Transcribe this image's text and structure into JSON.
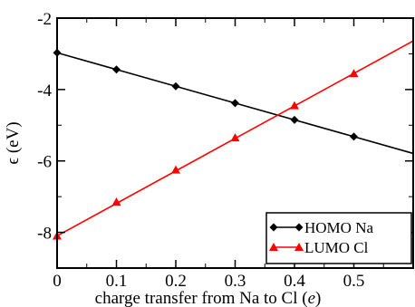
{
  "chart_data": {
    "type": "line",
    "title": "",
    "xlabel": "charge transfer from Na to Cl (e)",
    "xlabel_parts": {
      "main": "charge transfer from Na to Cl (",
      "unit": "e",
      "close": ")"
    },
    "ylabel": "ϵ (eV)",
    "xlim": [
      0,
      0.6
    ],
    "ylim": [
      -9,
      -2
    ],
    "x_ticks": [
      0,
      0.1,
      0.2,
      0.3,
      0.4,
      0.5
    ],
    "x_tick_labels": [
      "0",
      "0.1",
      "0.2",
      "0.3",
      "0.4",
      "0.5"
    ],
    "y_ticks": [
      -8,
      -6,
      -4,
      -2
    ],
    "y_tick_labels": [
      "-8",
      "-6",
      "-4",
      "-2"
    ],
    "grid": false,
    "legend_position": "bottom-right",
    "series": [
      {
        "name": "HOMO Na",
        "color": "#000000",
        "marker": "diamond",
        "x": [
          0,
          0.1,
          0.2,
          0.3,
          0.4,
          0.5
        ],
        "y": [
          -2.97,
          -3.44,
          -3.91,
          -4.38,
          -4.85,
          -5.32
        ],
        "line_extent": [
          0,
          0.6
        ]
      },
      {
        "name": "LUMO Cl",
        "color": "#ff0000",
        "marker": "triangle",
        "x": [
          0,
          0.1,
          0.2,
          0.3,
          0.4,
          0.5
        ],
        "y": [
          -8.1,
          -7.15,
          -6.25,
          -5.35,
          -4.45,
          -3.55
        ],
        "line_extent": [
          0,
          0.6
        ]
      }
    ]
  }
}
